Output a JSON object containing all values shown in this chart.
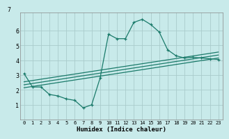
{
  "title": "",
  "xlabel": "Humidex (Indice chaleur)",
  "background_color": "#c8eaea",
  "grid_color": "#aacccc",
  "line_color": "#1a7a6a",
  "xlim": [
    -0.5,
    23.5
  ],
  "ylim": [
    0,
    7.2
  ],
  "xticks": [
    0,
    1,
    2,
    3,
    4,
    5,
    6,
    7,
    8,
    9,
    10,
    11,
    12,
    13,
    14,
    15,
    16,
    17,
    18,
    19,
    20,
    21,
    22,
    23
  ],
  "yticks": [
    1,
    2,
    3,
    4,
    5,
    6
  ],
  "ytick_label_7": "7",
  "curve1_x": [
    0,
    1,
    2,
    3,
    4,
    5,
    6,
    7,
    8,
    9,
    10,
    11,
    12,
    13,
    14,
    15,
    16,
    17,
    18,
    19,
    20,
    21,
    22,
    23
  ],
  "curve1_y": [
    3.1,
    2.2,
    2.2,
    1.7,
    1.6,
    1.4,
    1.3,
    0.8,
    1.0,
    2.8,
    5.75,
    5.45,
    5.45,
    6.55,
    6.75,
    6.4,
    5.9,
    4.7,
    4.3,
    4.15,
    4.2,
    4.15,
    4.1,
    4.05
  ],
  "line1_x": [
    0,
    23
  ],
  "line1_y": [
    2.55,
    4.55
  ],
  "line2_x": [
    0,
    23
  ],
  "line2_y": [
    2.35,
    4.35
  ],
  "line3_x": [
    0,
    23
  ],
  "line3_y": [
    2.15,
    4.15
  ]
}
